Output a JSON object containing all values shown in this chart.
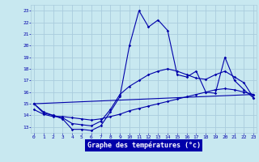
{
  "xlabel": "Graphe des températures (°c)",
  "bg_color": "#c8e8f0",
  "plot_bg_color": "#c8e8f0",
  "line_color": "#0000aa",
  "grid_color": "#aaccdd",
  "xlabel_bg": "#0000aa",
  "xlabel_fg": "#ffffff",
  "x_ticks": [
    0,
    1,
    2,
    3,
    4,
    5,
    6,
    7,
    8,
    9,
    10,
    11,
    12,
    13,
    14,
    15,
    16,
    17,
    18,
    19,
    20,
    21,
    22,
    23
  ],
  "y_ticks": [
    13,
    14,
    15,
    16,
    17,
    18,
    19,
    20,
    21,
    22,
    23
  ],
  "ylim": [
    12.5,
    23.5
  ],
  "xlim": [
    -0.3,
    23.3
  ],
  "lines": [
    {
      "x": [
        0,
        1,
        2,
        3,
        4,
        5,
        6,
        7,
        8,
        9,
        10,
        11,
        12,
        13,
        14,
        15,
        16,
        17,
        18,
        19,
        20,
        21,
        22,
        23
      ],
      "y": [
        15,
        14.2,
        14.0,
        13.7,
        12.8,
        12.8,
        12.7,
        13.1,
        14.3,
        15.6,
        20.0,
        23.0,
        21.6,
        22.2,
        21.3,
        17.5,
        17.3,
        17.8,
        16.0,
        15.9,
        19.0,
        17.0,
        16.2,
        15.5
      ]
    },
    {
      "x": [
        0,
        1,
        2,
        3,
        4,
        5,
        6,
        7,
        8,
        9,
        10,
        11,
        12,
        13,
        14,
        15,
        16,
        17,
        18,
        19,
        20,
        21,
        22,
        23
      ],
      "y": [
        15.0,
        14.3,
        14.0,
        13.8,
        13.3,
        13.2,
        13.1,
        13.5,
        14.5,
        15.8,
        16.5,
        17.0,
        17.5,
        17.8,
        18.0,
        17.8,
        17.5,
        17.2,
        17.1,
        17.5,
        17.8,
        17.3,
        16.8,
        15.5
      ]
    },
    {
      "x": [
        0,
        1,
        2,
        3,
        4,
        5,
        6,
        7,
        8,
        9,
        10,
        11,
        12,
        13,
        14,
        15,
        16,
        17,
        18,
        19,
        20,
        21,
        22,
        23
      ],
      "y": [
        14.5,
        14.1,
        13.9,
        13.9,
        13.8,
        13.7,
        13.6,
        13.7,
        13.9,
        14.1,
        14.4,
        14.6,
        14.8,
        15.0,
        15.2,
        15.4,
        15.6,
        15.8,
        16.0,
        16.2,
        16.3,
        16.2,
        16.0,
        15.8
      ]
    },
    {
      "x": [
        0,
        23
      ],
      "y": [
        15.0,
        15.8
      ]
    }
  ]
}
